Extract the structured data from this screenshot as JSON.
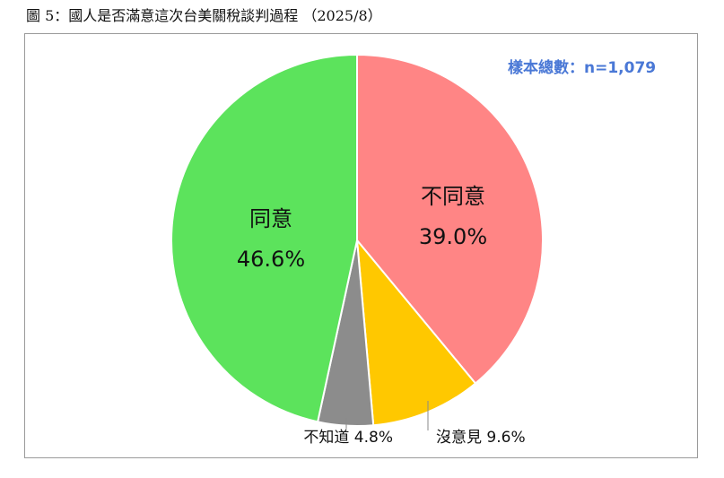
{
  "title": "圖 5：國人是否滿意這次台美關稅談判過程 （2025/8）",
  "sample_label": "樣本總數：n=1,079",
  "chart_data": {
    "type": "pie",
    "start_angle_deg": 0,
    "direction": "clockwise",
    "slices": [
      {
        "label": "不同意",
        "value": 39.0,
        "value_label": "39.0%",
        "color": "#ff8585",
        "label_position": "inside"
      },
      {
        "label": "沒意見",
        "value": 9.6,
        "value_label": "9.6%",
        "color": "#ffc800",
        "label_position": "outside"
      },
      {
        "label": "不知道",
        "value": 4.8,
        "value_label": "4.8%",
        "color": "#8c8c8c",
        "label_position": "outside"
      },
      {
        "label": "同意",
        "value": 46.6,
        "value_label": "46.6%",
        "color": "#5ce35c",
        "label_position": "inside"
      }
    ]
  }
}
